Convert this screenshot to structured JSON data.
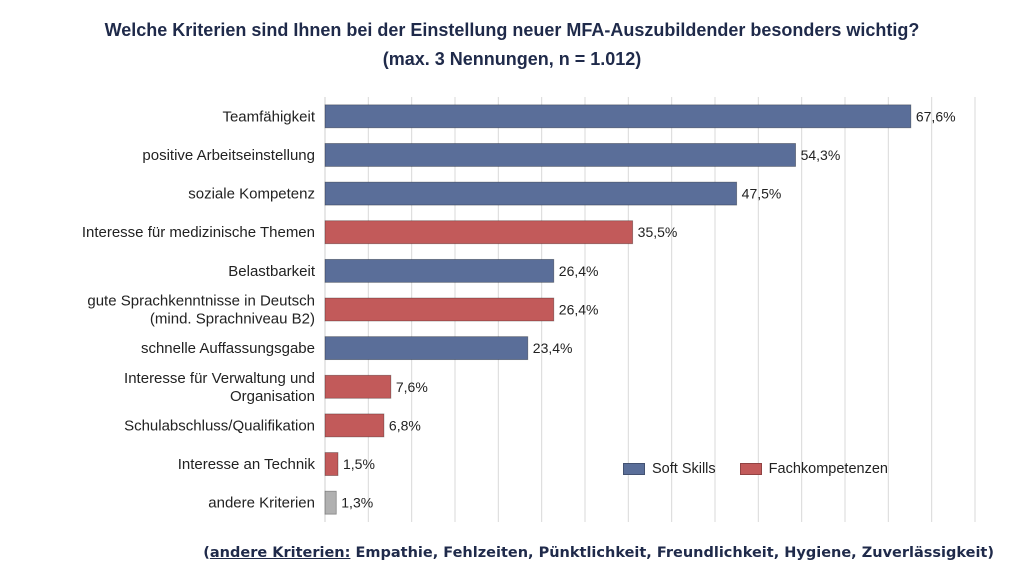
{
  "title_line1": "Welche Kriterien sind Ihnen bei der Einstellung neuer MFA-Auszubildender besonders wichtig?",
  "title_line2": "(max. 3 Nennungen, n = 1.012)",
  "footnote": {
    "open_paren": "(",
    "label": "andere Kriterien:",
    "text": " Empathie, Fehlzeiten, Pünktlichkeit, Freundlichkeit, Hygiene, Zuverlässigkeit)"
  },
  "legend": [
    {
      "name": "Soft Skills",
      "color": "#5a6e99"
    },
    {
      "name": "Fachkompetenzen",
      "color": "#c25a5a"
    }
  ],
  "colors": {
    "soft_skills": "#5a6e99",
    "fachkompetenzen": "#c25a5a",
    "andere": "#b0b0b0",
    "grid": "#d9d9d9"
  },
  "chart_data": {
    "type": "bar",
    "orientation": "horizontal",
    "title": "Welche Kriterien sind Ihnen bei der Einstellung neuer MFA-Auszubildender besonders wichtig?",
    "subtitle": "(max. 3 Nennungen, n = 1.012)",
    "xlabel": "",
    "ylabel": "",
    "xlim": [
      0,
      75
    ],
    "grid": "vertical",
    "legend_position": "bottom-right inside plot",
    "categories": [
      [
        "Teamfähigkeit"
      ],
      [
        "positive Arbeitseinstellung"
      ],
      [
        "soziale Kompetenz"
      ],
      [
        "Interesse für medizinische Themen"
      ],
      [
        "Belastbarkeit"
      ],
      [
        "gute Sprachkenntnisse in Deutsch",
        "(mind. Sprachniveau B2)"
      ],
      [
        "schnelle Auffassungsgabe"
      ],
      [
        "Interesse für Verwaltung und",
        "Organisation"
      ],
      [
        "Schulabschluss/Qualifikation"
      ],
      [
        "Interesse an Technik"
      ],
      [
        "andere Kriterien"
      ]
    ],
    "values": [
      67.6,
      54.3,
      47.5,
      35.5,
      26.4,
      26.4,
      23.4,
      7.6,
      6.8,
      1.5,
      1.3
    ],
    "value_labels": [
      "67,6%",
      "54,3%",
      "47,5%",
      "35,5%",
      "26,4%",
      "26,4%",
      "23,4%",
      "7,6%",
      "6,8%",
      "1,5%",
      "1,3%"
    ],
    "groups": [
      "Soft Skills",
      "Soft Skills",
      "Soft Skills",
      "Fachkompetenzen",
      "Soft Skills",
      "Fachkompetenzen",
      "Soft Skills",
      "Fachkompetenzen",
      "Fachkompetenzen",
      "Fachkompetenzen",
      "andere"
    ]
  }
}
